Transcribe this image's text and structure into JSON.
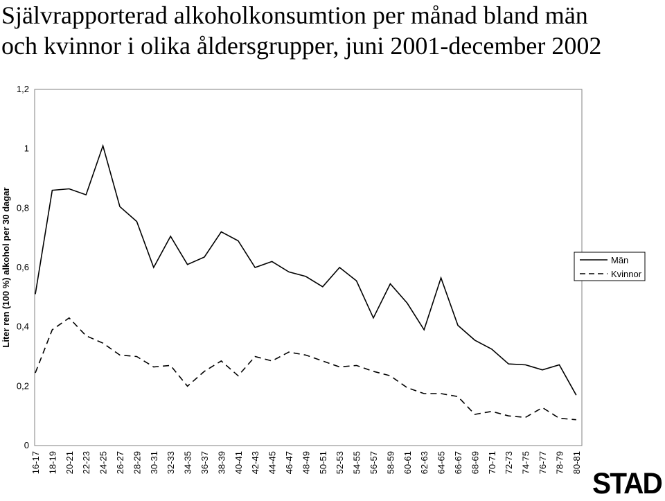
{
  "title": {
    "line1": "Självrapporterad alkoholkonsumtion per månad bland män",
    "line2": "och kvinnor i olika åldersgrupper, juni 2001-december 2002"
  },
  "logo": {
    "text": "STAD",
    "color": "#000000"
  },
  "chart_data": {
    "type": "line",
    "title": "Självrapporterad alkoholkonsumtion per månad bland män och kvinnor i olika åldersgrupper, juni 2001-december 2002",
    "xlabel": "",
    "ylabel": "Liter ren (100 %) alkohol per 30 dagar",
    "ylim": [
      0,
      1.2
    ],
    "yticks": [
      "0",
      "0,2",
      "0,4",
      "0,6",
      "0,8",
      "1",
      "1,2"
    ],
    "grid": false,
    "legend_position": "right",
    "categories": [
      "16-17",
      "18-19",
      "20-21",
      "22-23",
      "24-25",
      "26-27",
      "28-29",
      "30-31",
      "32-33",
      "34-35",
      "36-37",
      "38-39",
      "40-41",
      "42-43",
      "44-45",
      "46-47",
      "48-49",
      "50-51",
      "52-53",
      "54-55",
      "56-57",
      "58-59",
      "60-61",
      "62-63",
      "64-65",
      "66-67",
      "68-69",
      "70-71",
      "72-73",
      "74-75",
      "76-77",
      "78-79",
      "80-81"
    ],
    "series": [
      {
        "name": "Män",
        "style": "solid",
        "color": "#000000",
        "values": [
          0.51,
          0.86,
          0.865,
          0.845,
          1.01,
          0.805,
          0.755,
          0.6,
          0.705,
          0.61,
          0.635,
          0.72,
          0.69,
          0.6,
          0.62,
          0.585,
          0.57,
          0.535,
          0.6,
          0.555,
          0.43,
          0.545,
          0.48,
          0.39,
          0.565,
          0.405,
          0.355,
          0.325,
          0.275,
          0.272,
          0.255,
          0.272,
          0.17
        ]
      },
      {
        "name": "Kvinnor",
        "style": "dashed",
        "color": "#000000",
        "values": [
          0.245,
          0.39,
          0.43,
          0.37,
          0.345,
          0.305,
          0.3,
          0.265,
          0.27,
          0.2,
          0.25,
          0.285,
          0.235,
          0.3,
          0.285,
          0.315,
          0.305,
          0.285,
          0.265,
          0.27,
          0.25,
          0.235,
          0.195,
          0.175,
          0.175,
          0.165,
          0.105,
          0.115,
          0.1,
          0.095,
          0.128,
          0.092,
          0.087
        ]
      }
    ]
  }
}
